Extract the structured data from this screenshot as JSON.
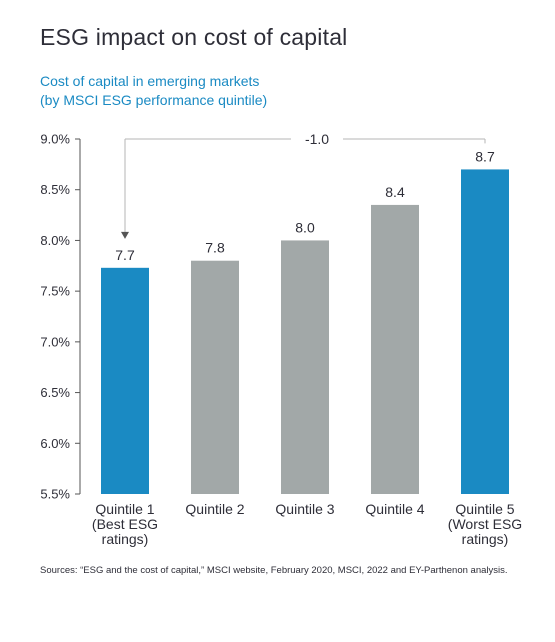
{
  "chart_data": {
    "type": "bar",
    "title": "ESG impact on cost of capital",
    "subtitle_lines": [
      "Cost of capital in emerging markets",
      "(by MSCI ESG performance quintile)"
    ],
    "categories": [
      [
        "Quintile 1",
        "(Best ESG",
        "ratings)"
      ],
      [
        "Quintile 2"
      ],
      [
        "Quintile 3"
      ],
      [
        "Quintile 4"
      ],
      [
        "Quintile 5",
        "(Worst ESG",
        "ratings)"
      ]
    ],
    "values": [
      7.73,
      7.8,
      8.0,
      8.35,
      8.7
    ],
    "data_labels": [
      "7.7",
      "7.8",
      "8.0",
      "8.4",
      "8.7"
    ],
    "highlighted": [
      true,
      false,
      false,
      false,
      true
    ],
    "yticks": [
      "9.0%",
      "8.5%",
      "8.0%",
      "7.5%",
      "7.0%",
      "6.5%",
      "6.0%",
      "5.5%"
    ],
    "ytick_values": [
      9.0,
      8.5,
      8.0,
      7.5,
      7.0,
      6.5,
      6.0,
      5.5
    ],
    "ylim": [
      5.5,
      9.0
    ],
    "annotation": {
      "label": "-1.0",
      "from_category": 4,
      "to_category": 0
    },
    "colors": {
      "highlight": "#1a8ac3",
      "default": "#a2a8a8",
      "axis": "#555555",
      "annotation": "#b5b5b5"
    },
    "grid": false
  },
  "source_text": "Sources: “ESG and the cost of capital,” MSCI website, February 2020, MSCI, 2022 and EY-Parthenon analysis."
}
